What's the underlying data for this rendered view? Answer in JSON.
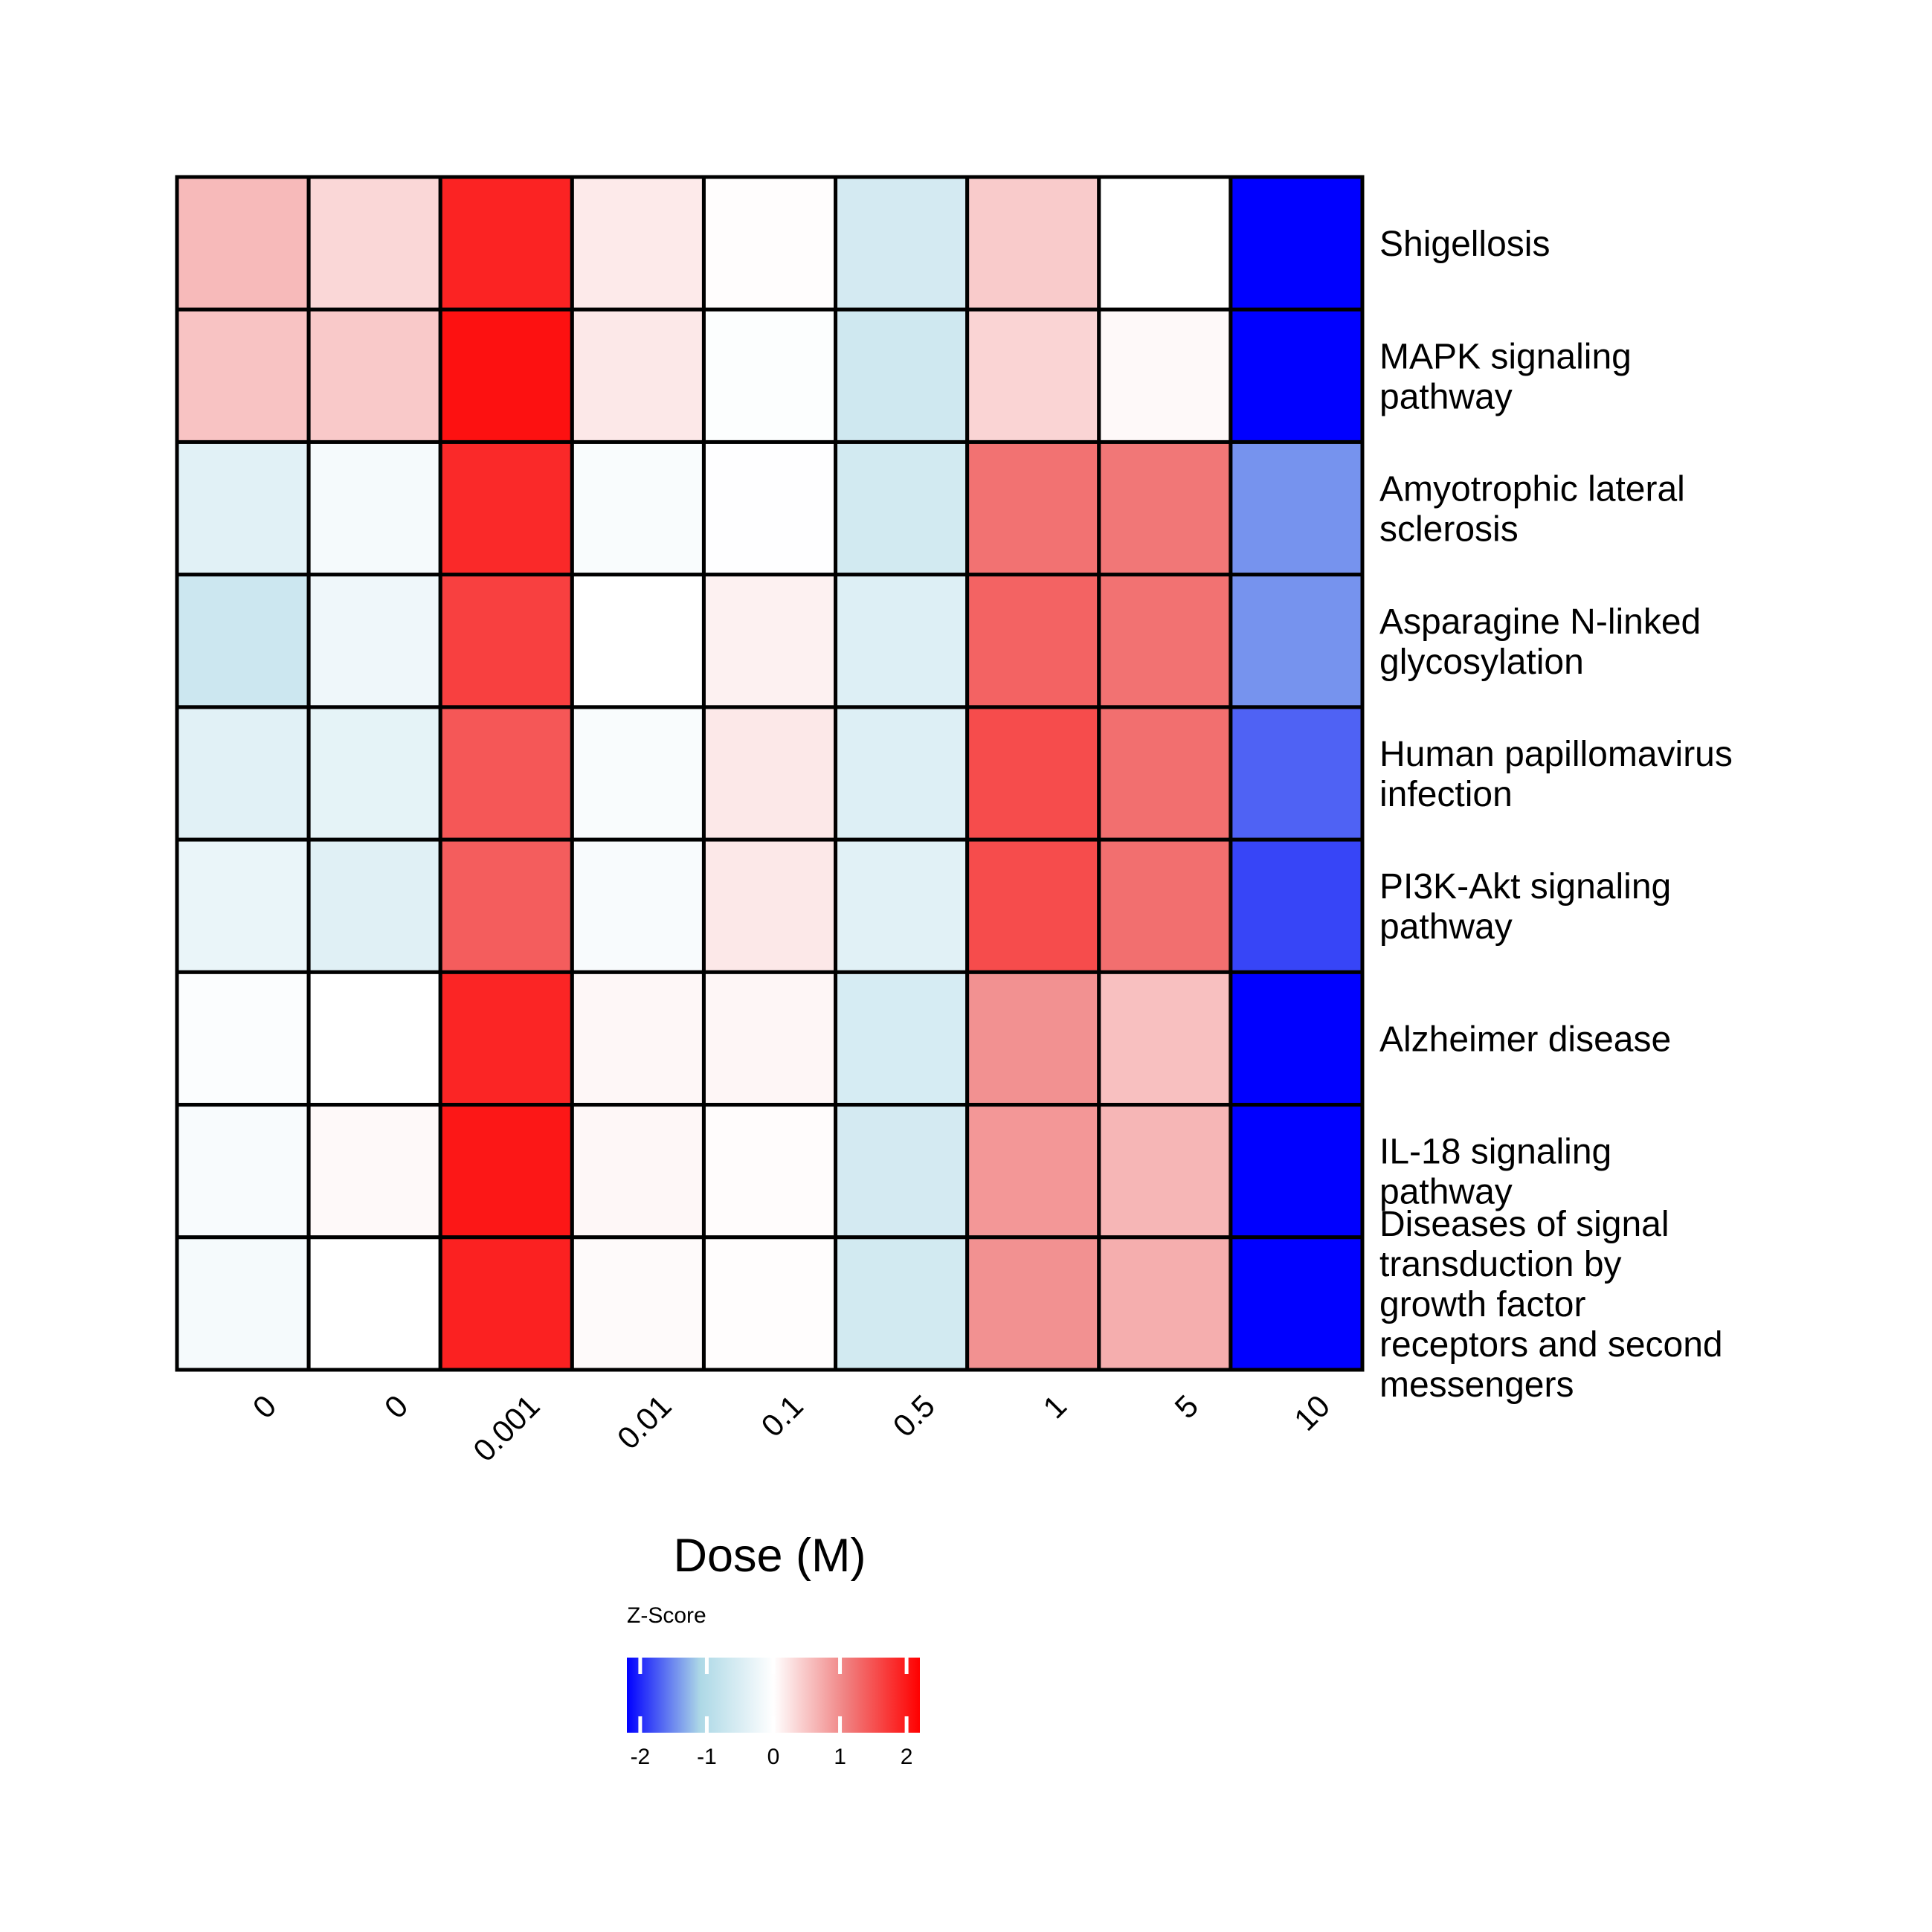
{
  "chart_data": {
    "type": "heatmap",
    "title": "",
    "xlabel": "Dose (M)",
    "ylabel": "",
    "categories": [
      "0",
      "0",
      "0.001",
      "0.01",
      "0.1",
      "0.5",
      "1",
      "5",
      "10"
    ],
    "rows": [
      {
        "lines": [
          "Shigellosis"
        ],
        "values": [
          0.6,
          0.35,
          1.9,
          0.18,
          0.02,
          -0.58,
          0.45,
          0.0,
          -2.2
        ]
      },
      {
        "lines": [
          "MAPK signaling",
          "pathway"
        ],
        "values": [
          0.52,
          0.47,
          2.05,
          0.2,
          -0.04,
          -0.65,
          0.37,
          0.05,
          -2.2
        ]
      },
      {
        "lines": [
          "Amyotrophic lateral",
          "sclerosis"
        ],
        "values": [
          -0.4,
          -0.13,
          1.85,
          -0.08,
          -0.02,
          -0.6,
          1.22,
          1.18,
          -1.45
        ]
      },
      {
        "lines": [
          "Asparagine N-linked",
          "glycosylation"
        ],
        "values": [
          -0.68,
          -0.22,
          1.65,
          0.0,
          0.12,
          -0.45,
          1.35,
          1.22,
          -1.45
        ]
      },
      {
        "lines": [
          "Human papillomavirus",
          "infection"
        ],
        "values": [
          -0.4,
          -0.35,
          1.45,
          -0.08,
          0.2,
          -0.45,
          1.55,
          1.25,
          -1.7
        ]
      },
      {
        "lines": [
          "PI3K-Akt signaling",
          "pathway"
        ],
        "values": [
          -0.28,
          -0.42,
          1.4,
          -0.1,
          0.2,
          -0.4,
          1.55,
          1.25,
          -1.85
        ]
      },
      {
        "lines": [
          "Alzheimer disease"
        ],
        "values": [
          -0.05,
          0.0,
          1.88,
          0.07,
          0.08,
          -0.55,
          0.95,
          0.55,
          -2.2
        ]
      },
      {
        "lines": [
          "IL-18 signaling",
          "pathway"
        ],
        "values": [
          -0.1,
          0.05,
          2.0,
          0.07,
          0.03,
          -0.58,
          0.9,
          0.63,
          -2.2
        ]
      },
      {
        "lines": [
          "Diseases of signal",
          "transduction by",
          "growth factor",
          "receptors and second",
          "messengers"
        ],
        "values": [
          -0.13,
          0.0,
          1.92,
          0.04,
          0.02,
          -0.6,
          0.95,
          0.7,
          -2.2
        ]
      }
    ],
    "legend": {
      "title": "Z-Score",
      "ticks": [
        "-2",
        "-1",
        "0",
        "1",
        "2"
      ],
      "tick_values": [
        -2,
        -1,
        0,
        1,
        2
      ],
      "range": [
        -2.2,
        2.2
      ],
      "placement": "bottom-center"
    },
    "colors": {
      "low": "#0000ff",
      "mid_low": "#add8e6",
      "mid": "#ffffff",
      "mid_high": "#f08080",
      "high": "#ff0000",
      "grid_line": "#000000"
    }
  }
}
